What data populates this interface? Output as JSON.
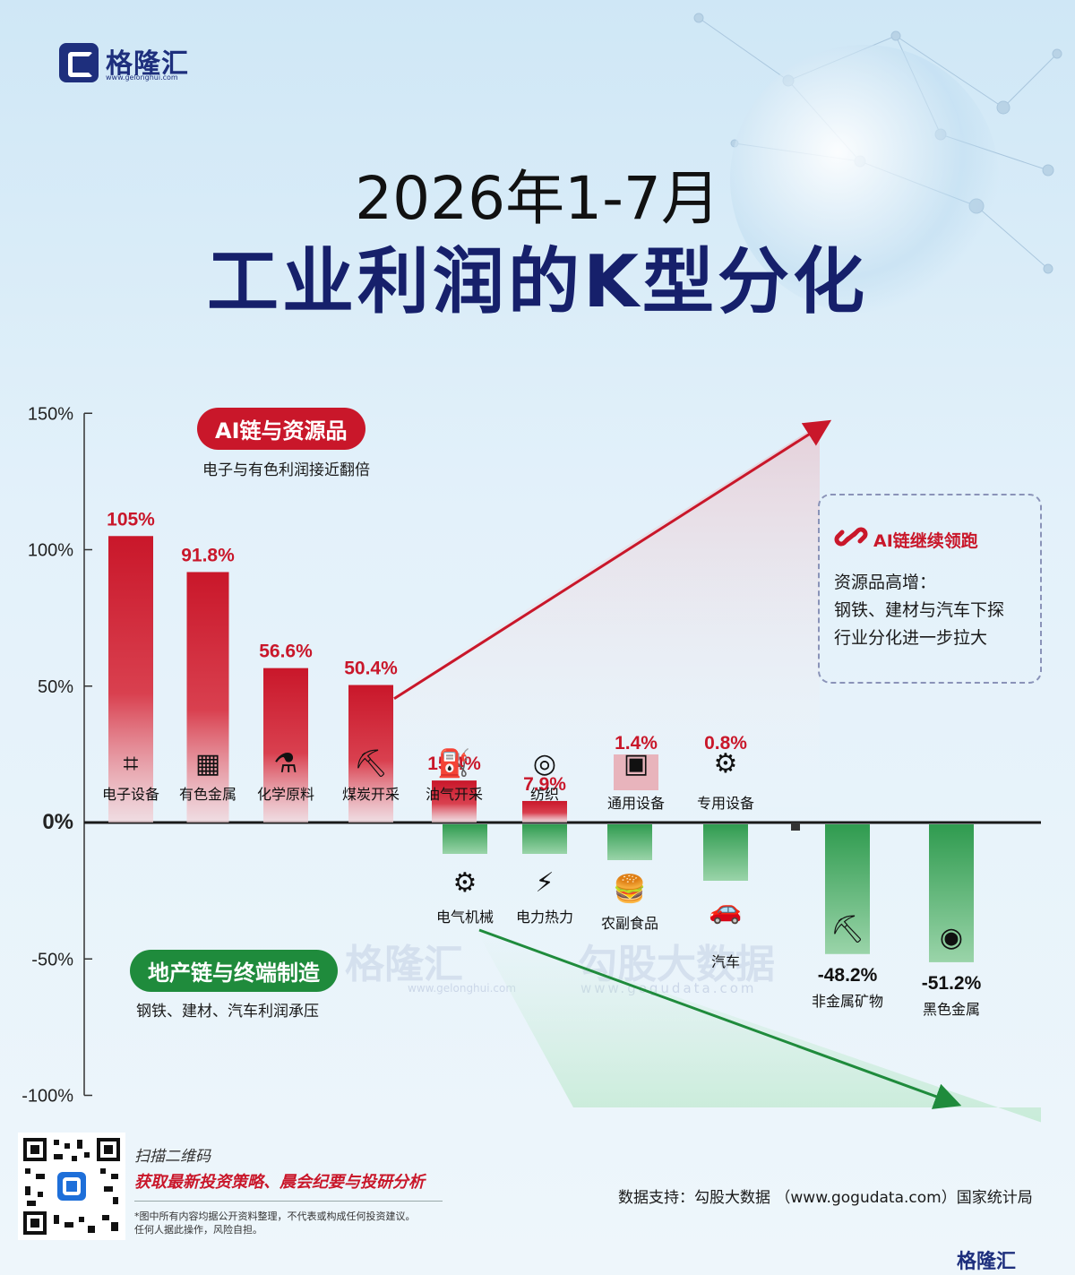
{
  "brand": {
    "name": "格隆汇",
    "url": "www.gelonghui.com"
  },
  "title": {
    "line1": "2026年1-7月",
    "line2": "工业利润的K型分化"
  },
  "groups": {
    "up": {
      "label": "AI链与资源品",
      "subtitle": "电子与有色利润接近翻倍"
    },
    "down": {
      "label": "地产链与终端制造",
      "subtitle": "钢铁、建材、汽车利润承压"
    }
  },
  "note": {
    "title": "AI链继续领跑",
    "lines": [
      "资源品高增：",
      "钢铁、建材与汽车下探",
      "行业分化进一步拉大"
    ]
  },
  "watermark": {
    "brand": "格隆汇",
    "brand_url": "www.gelonghui.com",
    "partner": "勾股大数据",
    "partner_url": "www.gogudata.com"
  },
  "footer": {
    "scan": "扫描二维码",
    "cta": "获取最新投资策略、晨会纪要与投研分析",
    "disclaimer_1": "*图中所有内容均据公开资料整理，不代表或构成任何投资建议。",
    "disclaimer_2": "任何人据此操作，风险自担。",
    "source": "数据支持：勾股大数据 （www.gogudata.com）国家统计局",
    "corner_logo": "格隆汇"
  },
  "colors": {
    "positive": "#c9172a",
    "negative": "#2e9a4e",
    "title": "#16206b"
  },
  "chart_data": {
    "type": "bar",
    "ylim": [
      -100,
      150
    ],
    "yticks": [
      "150%",
      "100%",
      "50%",
      "0%",
      "-50%",
      "-100%"
    ],
    "ytick_values": [
      150,
      100,
      50,
      0,
      -50,
      -100
    ],
    "positive": [
      {
        "category": "电子设备",
        "value": 105,
        "label": "105%",
        "icon": "chip-icon"
      },
      {
        "category": "有色金属",
        "value": 91.8,
        "label": "91.8%",
        "icon": "ingots-icon"
      },
      {
        "category": "化学原料",
        "value": 56.6,
        "label": "56.6%",
        "icon": "flask-icon"
      },
      {
        "category": "煤炭开采",
        "value": 50.4,
        "label": "50.4%",
        "icon": "coal-cart-icon"
      },
      {
        "category": "油气开采",
        "value": 15.4,
        "label": "15.4%",
        "icon": "oil-pump-icon"
      },
      {
        "category": "纺织",
        "value": 7.9,
        "label": "7.9%",
        "icon": "spool-icon"
      },
      {
        "category": "通用设备",
        "value": 1.4,
        "label": "1.4%",
        "icon": "machine-icon"
      },
      {
        "category": "专用设备",
        "value": 0.8,
        "label": "0.8%",
        "icon": "robot-arm-icon"
      }
    ],
    "negative": [
      {
        "category": "电气机械",
        "icon": "motor-icon"
      },
      {
        "category": "电力热力",
        "icon": "power-tower-icon"
      },
      {
        "category": "农副食品",
        "icon": "food-icon"
      },
      {
        "category": "汽车",
        "icon": "car-icon"
      },
      {
        "category": "非金属矿物",
        "value": -48.2,
        "label": "-48.2%",
        "icon": "mineral-cart-icon"
      },
      {
        "category": "黑色金属",
        "value": -51.2,
        "label": "-51.2%",
        "icon": "steel-roll-icon"
      }
    ]
  }
}
